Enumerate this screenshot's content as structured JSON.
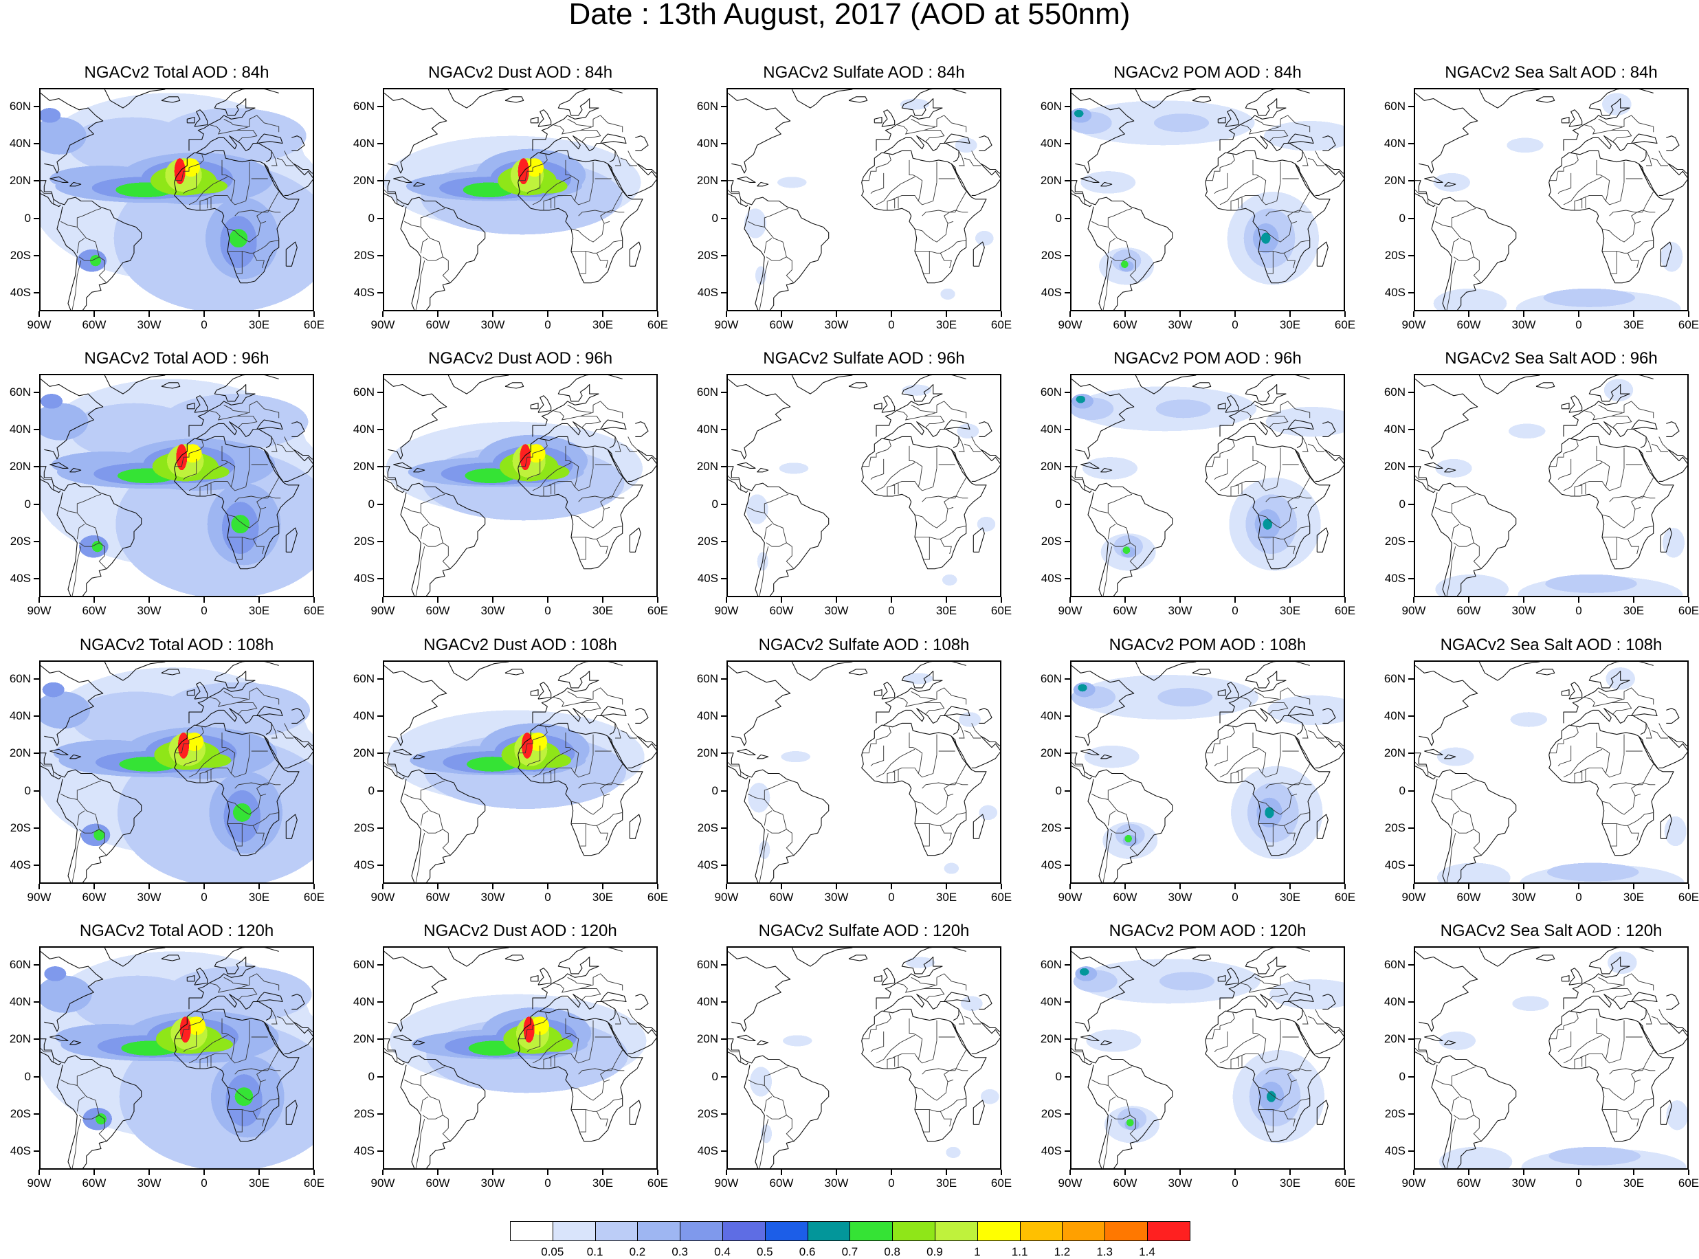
{
  "title": "Date : 13th August, 2017 (AOD at 550nm)",
  "panels": [
    {
      "title": "NGACv2 Total AOD : 84h",
      "species": "total",
      "hour": 84
    },
    {
      "title": "NGACv2 Dust AOD : 84h",
      "species": "dust",
      "hour": 84
    },
    {
      "title": "NGACv2 Sulfate AOD : 84h",
      "species": "sulfate",
      "hour": 84
    },
    {
      "title": "NGACv2 POM AOD : 84h",
      "species": "pom",
      "hour": 84
    },
    {
      "title": "NGACv2 Sea Salt AOD : 84h",
      "species": "seasalt",
      "hour": 84
    },
    {
      "title": "NGACv2 Total AOD : 96h",
      "species": "total",
      "hour": 96
    },
    {
      "title": "NGACv2 Dust AOD : 96h",
      "species": "dust",
      "hour": 96
    },
    {
      "title": "NGACv2 Sulfate AOD : 96h",
      "species": "sulfate",
      "hour": 96
    },
    {
      "title": "NGACv2 POM AOD : 96h",
      "species": "pom",
      "hour": 96
    },
    {
      "title": "NGACv2 Sea Salt AOD : 96h",
      "species": "seasalt",
      "hour": 96
    },
    {
      "title": "NGACv2 Total AOD : 108h",
      "species": "total",
      "hour": 108
    },
    {
      "title": "NGACv2 Dust AOD : 108h",
      "species": "dust",
      "hour": 108
    },
    {
      "title": "NGACv2 Sulfate AOD : 108h",
      "species": "sulfate",
      "hour": 108
    },
    {
      "title": "NGACv2 POM AOD : 108h",
      "species": "pom",
      "hour": 108
    },
    {
      "title": "NGACv2 Sea Salt AOD : 108h",
      "species": "seasalt",
      "hour": 108
    },
    {
      "title": "NGACv2 Total AOD : 120h",
      "species": "total",
      "hour": 120
    },
    {
      "title": "NGACv2 Dust AOD : 120h",
      "species": "dust",
      "hour": 120
    },
    {
      "title": "NGACv2 Sulfate AOD : 120h",
      "species": "sulfate",
      "hour": 120
    },
    {
      "title": "NGACv2 POM AOD : 120h",
      "species": "pom",
      "hour": 120
    },
    {
      "title": "NGACv2 Sea Salt  AOD : 120h",
      "species": "seasalt",
      "hour": 120
    }
  ],
  "axes": {
    "lon_ticks": [
      "90W",
      "60W",
      "30W",
      "0",
      "30E",
      "60E"
    ],
    "lat_ticks": [
      "60N",
      "40N",
      "20N",
      "0",
      "20S",
      "40S"
    ],
    "lon_range": [
      -90,
      60
    ],
    "lat_range": [
      -50,
      70
    ]
  },
  "colorbar": {
    "colors": [
      "#ffffff",
      "#d9e4fb",
      "#bccdf7",
      "#9eb6f2",
      "#7f99ec",
      "#5e6de4",
      "#1c5ee8",
      "#03969a",
      "#35e335",
      "#8fe618",
      "#bff23c",
      "#ffff00",
      "#ffc000",
      "#ffa000",
      "#ff7800",
      "#ff2020"
    ],
    "labels": [
      "0.05",
      "0.1",
      "0.2",
      "0.3",
      "0.4",
      "0.5",
      "0.6",
      "0.7",
      "0.8",
      "0.9",
      "1",
      "1.1",
      "1.2",
      "1.3",
      "1.4"
    ]
  },
  "map_features": [
    "coastlines",
    "country-borders"
  ]
}
